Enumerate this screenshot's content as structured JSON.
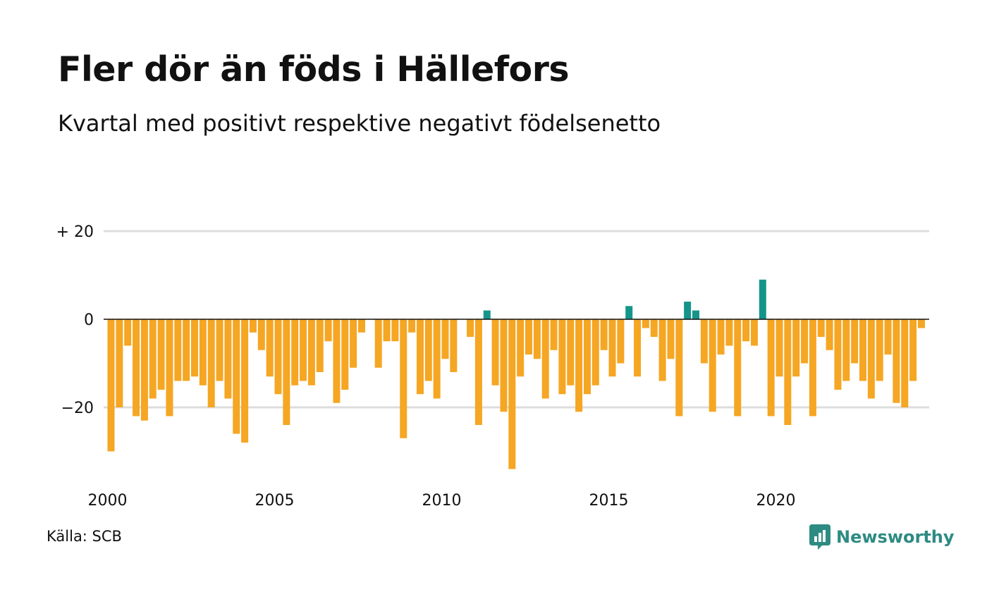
{
  "header": {
    "title": "Fler dör än föds i Hällefors",
    "subtitle": "Kvartal med positivt respektive negativt födelsenetto"
  },
  "footer": {
    "source": "Källa: SCB",
    "brand": "Newsworthy",
    "brand_icon": "chart-speech-bubble-icon"
  },
  "colors": {
    "negative": "#F5A623",
    "positive": "#15958A",
    "gridline": "#DDDDDD",
    "zero_line": "#111111",
    "brand": "#2E8B82"
  },
  "chart_data": {
    "type": "bar",
    "title": "Fler dör än föds i Hällefors",
    "subtitle": "Kvartal med positivt respektive negativt födelsenetto",
    "xlabel": "",
    "ylabel": "",
    "x_start": "2000 Q1",
    "x_end": "2024 Q3",
    "x_ticks": [
      {
        "year": 2000,
        "label": "2000"
      },
      {
        "year": 2005,
        "label": "2005"
      },
      {
        "year": 2010,
        "label": "2010"
      },
      {
        "year": 2015,
        "label": "2015"
      },
      {
        "year": 2020,
        "label": "2020"
      }
    ],
    "y_ticks": [
      {
        "value": 20,
        "label": "+ 20"
      },
      {
        "value": 0,
        "label": "0"
      },
      {
        "value": -20,
        "label": "−20"
      }
    ],
    "ylim": [
      -38,
      20
    ],
    "grid": true,
    "legend": "none",
    "series": [
      {
        "values": [
          -30,
          -20,
          -6,
          -22,
          -23,
          -18,
          -16,
          -22,
          -14,
          -14,
          -13,
          -15,
          -20,
          -14,
          -18,
          -26,
          -28,
          -3,
          -7,
          -13,
          -17,
          -24,
          -15,
          -14,
          -15,
          -12,
          -5,
          -19,
          -16,
          -11,
          -3,
          0,
          -11,
          -5,
          -5,
          -27,
          -3,
          -17,
          -14,
          -18,
          -9,
          -12,
          0,
          -4,
          -24,
          2,
          -15,
          -21,
          -34,
          -13,
          -8,
          -9,
          -18,
          -7,
          -17,
          -15,
          -21,
          -17,
          -15,
          -7,
          -13,
          -10,
          3,
          -13,
          -2,
          -4,
          -14,
          -9,
          -22,
          4,
          2,
          -10,
          -21,
          -8,
          -6,
          -22,
          -5,
          -6,
          9,
          -22,
          -13,
          -24,
          -13,
          -10,
          -22,
          -4,
          -7,
          -16,
          -14,
          -10,
          -14,
          -18,
          -14,
          -8,
          -19,
          -20,
          -14,
          -2
        ]
      }
    ]
  }
}
